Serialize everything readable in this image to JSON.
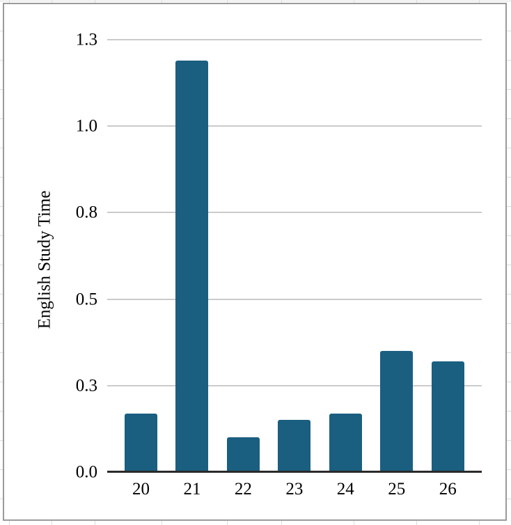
{
  "chart_data": {
    "type": "bar",
    "categories": [
      "20",
      "21",
      "22",
      "23",
      "24",
      "25",
      "26"
    ],
    "values": [
      0.17,
      1.19,
      0.1,
      0.15,
      0.17,
      0.35,
      0.32
    ],
    "title": "",
    "xlabel": "",
    "ylabel": "English Study Time",
    "ylim": [
      0,
      1.25
    ],
    "yticks": [
      0,
      0.25,
      0.5,
      0.75,
      1.0,
      1.25
    ],
    "ytick_labels": [
      "0.0",
      "0.3",
      "0.5",
      "0.8",
      "1.0",
      "1.3"
    ],
    "grid": true,
    "legend": false,
    "colors": {
      "bar": "#1a5f80",
      "gridline": "#cbcbcb",
      "axis_line": "#2a2a2a",
      "label_text": "#000000",
      "chart_frame_border": "#9a9a9a",
      "sheet_gridline": "#dcdcdc",
      "background": "#ffffff"
    }
  }
}
